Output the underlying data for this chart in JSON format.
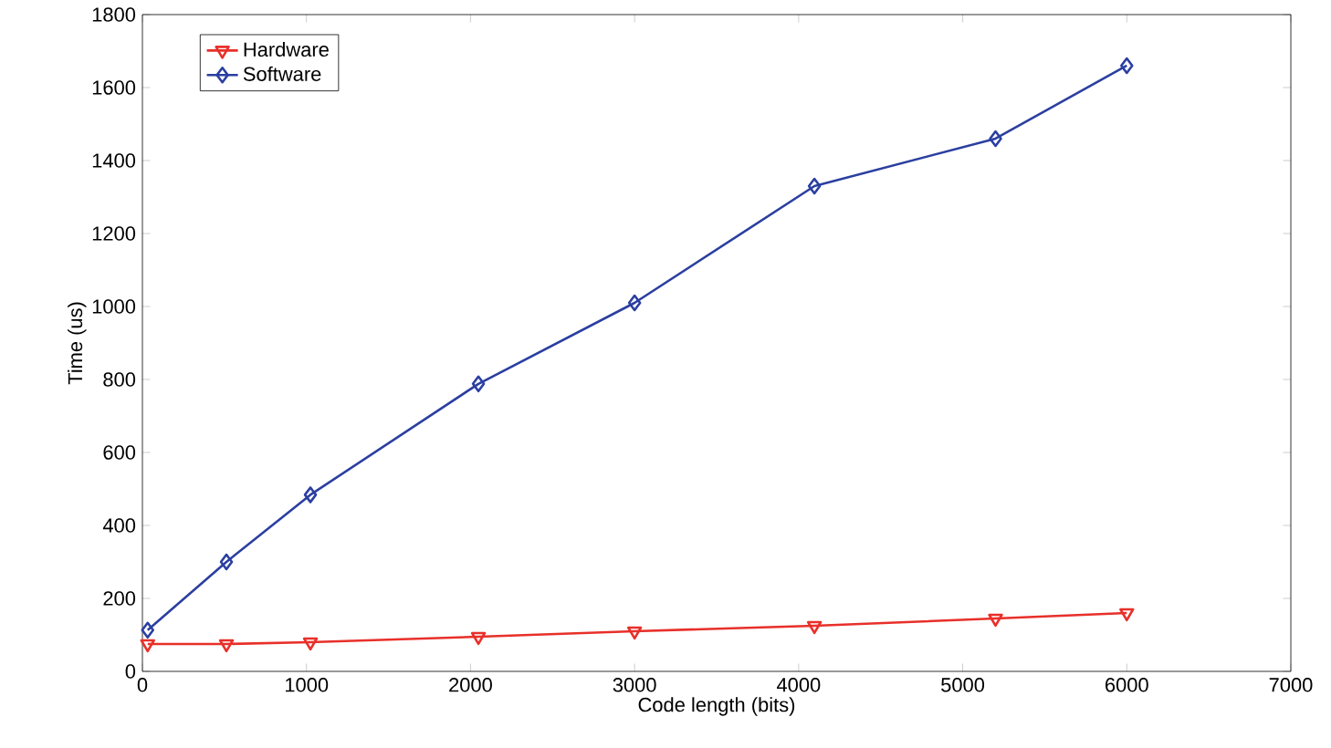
{
  "chart_data": {
    "type": "line",
    "xlabel": "Code length (bits)",
    "ylabel": "Time (us)",
    "xlim": [
      0,
      7000
    ],
    "ylim": [
      0,
      1800
    ],
    "xticks": [
      0,
      1000,
      2000,
      3000,
      4000,
      5000,
      6000,
      7000
    ],
    "yticks": [
      0,
      200,
      400,
      600,
      800,
      1000,
      1200,
      1400,
      1600,
      1800
    ],
    "legend": "top left",
    "grid": false,
    "line_style": "solid",
    "x": [
      32,
      512,
      1024,
      2048,
      3000,
      4096,
      5200,
      6000
    ],
    "series": [
      {
        "name": "Hardware",
        "color": "#e8302a",
        "marker": "triangle",
        "values": [
          75,
          75,
          80,
          95,
          110,
          125,
          145,
          160
        ]
      },
      {
        "name": "Software",
        "color": "#2b3fa0",
        "marker": "diamond",
        "values": [
          113,
          300,
          484,
          788,
          1010,
          1330,
          1460,
          1660
        ]
      }
    ]
  }
}
